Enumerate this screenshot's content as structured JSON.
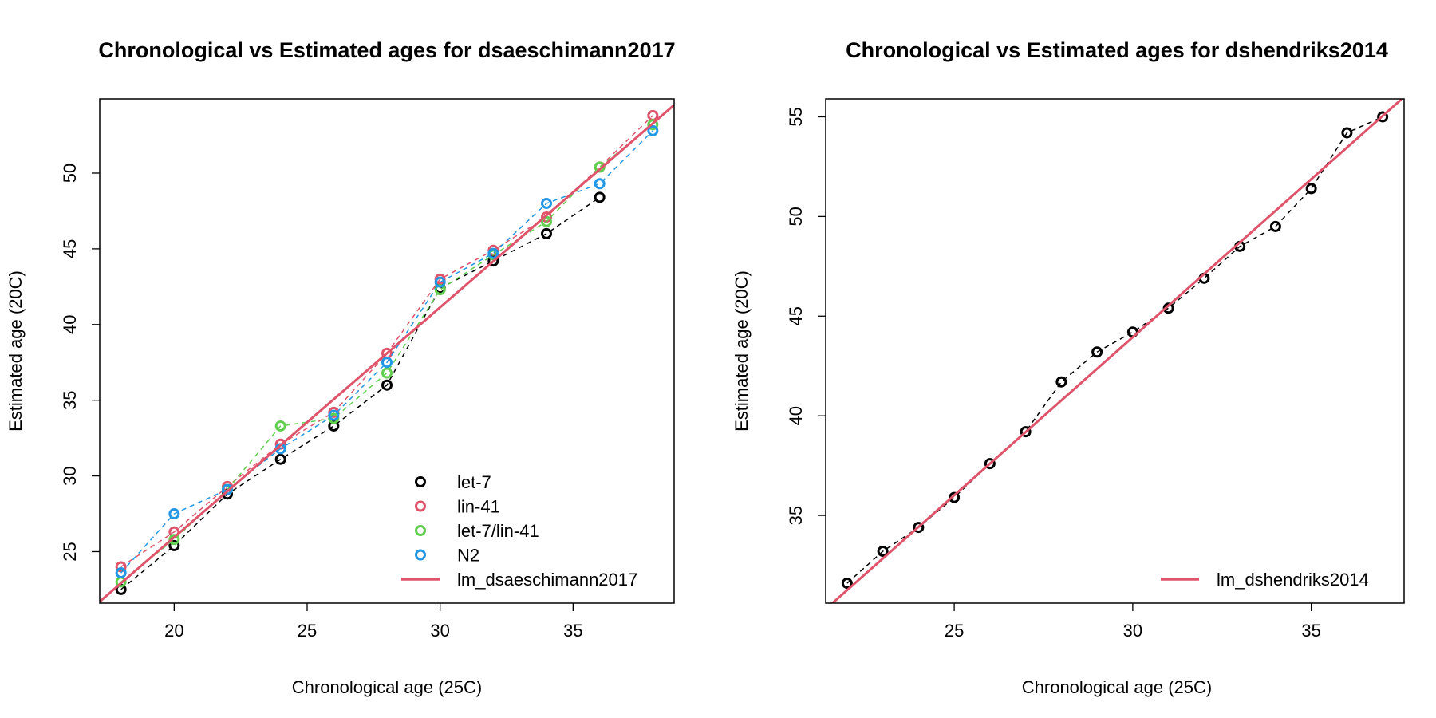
{
  "chart_data": [
    {
      "type": "scatter",
      "title": "Chronological vs Estimated ages for dsaeschimann2017",
      "xlabel": "Chronological age (25C)",
      "ylabel": "Estimated age (20C)",
      "xlim": [
        17.2,
        38.8
      ],
      "ylim": [
        21.6,
        54.9
      ],
      "xticks": [
        20,
        25,
        30,
        35
      ],
      "yticks": [
        25,
        30,
        35,
        40,
        45,
        50
      ],
      "legend_position": "bottom-right",
      "series": [
        {
          "name": "let-7",
          "color": "#000000",
          "line": "dashed",
          "marker": "open-circle",
          "x": [
            18,
            20,
            22,
            24,
            26,
            28,
            30,
            32,
            34,
            36
          ],
          "y": [
            22.5,
            25.4,
            28.8,
            31.1,
            33.3,
            36.0,
            42.4,
            44.2,
            46.0,
            48.4
          ]
        },
        {
          "name": "lin-41",
          "color": "#DF536B",
          "line": "dashed",
          "marker": "open-circle",
          "x": [
            18,
            20,
            22,
            24,
            26,
            28,
            30,
            32,
            34,
            36,
            38
          ],
          "y": [
            24.0,
            26.3,
            29.3,
            32.1,
            34.2,
            38.1,
            43.0,
            44.9,
            47.1,
            50.4,
            53.8
          ]
        },
        {
          "name": "let-7/lin-41",
          "color": "#61D04F",
          "line": "dashed",
          "marker": "open-circle",
          "x": [
            18,
            20,
            22,
            24,
            26,
            28,
            30,
            32,
            34,
            36,
            38
          ],
          "y": [
            23.0,
            25.8,
            29.1,
            33.3,
            33.8,
            36.8,
            42.3,
            44.6,
            46.8,
            50.4,
            53.2
          ]
        },
        {
          "name": "N2",
          "color": "#2297E6",
          "line": "dashed",
          "marker": "open-circle",
          "x": [
            18,
            20,
            22,
            24,
            26,
            28,
            30,
            32,
            34,
            36,
            38
          ],
          "y": [
            23.6,
            27.5,
            29.1,
            31.8,
            34.0,
            37.5,
            42.8,
            44.7,
            48.0,
            49.3,
            52.8
          ]
        },
        {
          "name": "lm_dsaeschimann2017",
          "color": "#DF536B",
          "line": "solid",
          "type": "fit",
          "x": [
            17.2,
            38.8
          ],
          "y": [
            21.7,
            54.5
          ]
        }
      ]
    },
    {
      "type": "scatter",
      "title": "Chronological vs Estimated ages for dshendriks2014",
      "xlabel": "Chronological age (25C)",
      "ylabel": "Estimated age (20C)",
      "xlim": [
        21.4,
        37.6
      ],
      "ylim": [
        30.6,
        55.9
      ],
      "xticks": [
        25,
        30,
        35
      ],
      "yticks": [
        35,
        40,
        45,
        50,
        55
      ],
      "legend_position": "bottom-right",
      "series": [
        {
          "name": "",
          "color": "#000000",
          "line": "dashed",
          "marker": "open-circle",
          "x": [
            22,
            23,
            24,
            25,
            26,
            27,
            28,
            29,
            30,
            31,
            32,
            33,
            34,
            35,
            36,
            37
          ],
          "y": [
            31.6,
            33.2,
            34.4,
            35.9,
            37.6,
            39.2,
            41.7,
            43.2,
            44.2,
            45.4,
            46.9,
            48.5,
            49.5,
            51.4,
            54.2,
            55.0
          ]
        },
        {
          "name": "lm_dshendriks2014",
          "color": "#DF536B",
          "line": "solid",
          "type": "fit",
          "x": [
            21.4,
            37.6
          ],
          "y": [
            30.3,
            56.0
          ]
        }
      ]
    }
  ]
}
